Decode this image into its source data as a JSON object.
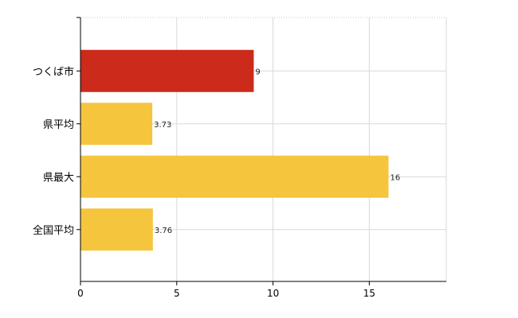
{
  "chart_data": {
    "type": "bar",
    "orientation": "horizontal",
    "categories": [
      "つくば市",
      "県平均",
      "県最大",
      "全国平均"
    ],
    "values": [
      9,
      3.73,
      16,
      3.76
    ],
    "value_labels": [
      "9",
      "3.73",
      "16",
      "3.76"
    ],
    "colors": [
      "#cc2a1a",
      "#f5c53e",
      "#f5c53e",
      "#f5c53e"
    ],
    "title": "",
    "xlabel": "",
    "ylabel": "",
    "xlim": [
      0,
      19
    ],
    "xticks": [
      0,
      5,
      10,
      15
    ],
    "xtick_labels": [
      "0",
      "5",
      "10",
      "15"
    ],
    "grid": true,
    "grid_color": "#d9d9d9",
    "axis_color": "#000000"
  }
}
